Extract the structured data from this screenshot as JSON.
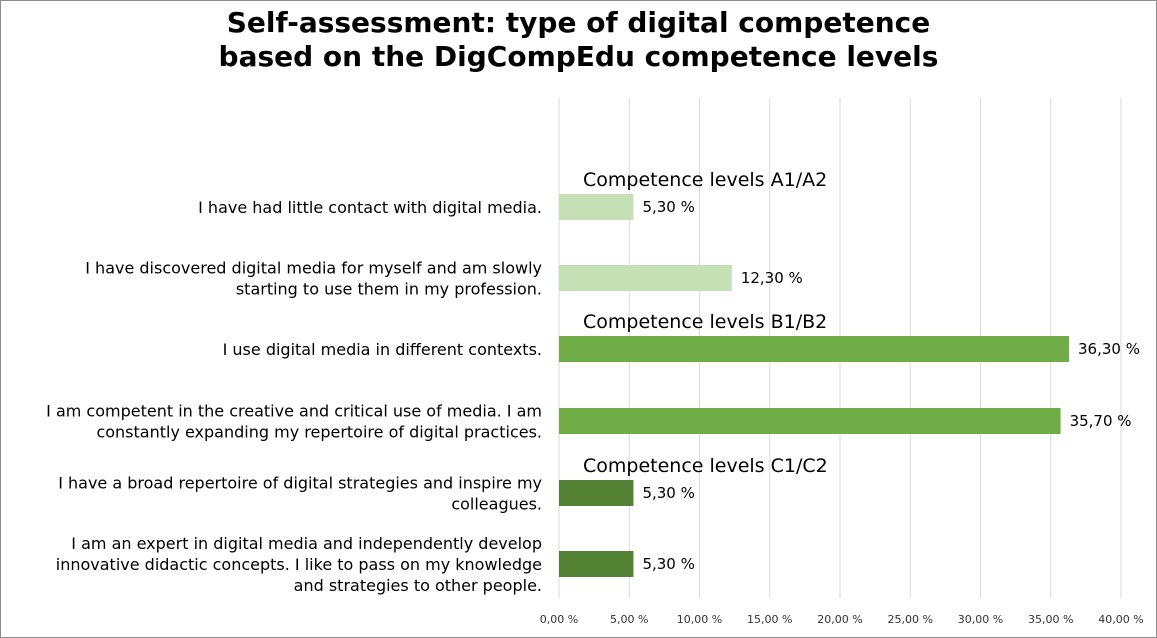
{
  "chart_data": {
    "type": "bar",
    "orientation": "horizontal",
    "title_lines": [
      "Self-assessment: type of digital competence",
      "based on the DigCompEdu competence levels"
    ],
    "categories": [
      [
        "I have had little contact with digital media."
      ],
      [
        "I have discovered digital media for myself and am slowly",
        "starting to use them in my profession."
      ],
      [
        "I use digital media in different contexts."
      ],
      [
        "I am competent in the creative and critical use of media. I am",
        "constantly expanding my repertoire of digital practices."
      ],
      [
        "I have a broad repertoire of digital strategies and inspire my",
        "colleagues."
      ],
      [
        "I am an expert in digital media and independently develop",
        "innovative didactic concepts. I like to pass on my knowledge",
        "and strategies to other people."
      ]
    ],
    "values": [
      5.3,
      12.3,
      36.3,
      35.7,
      5.3,
      5.3
    ],
    "value_labels": [
      "5,30 %",
      "12,30 %",
      "36,30 %",
      "35,70 %",
      "5,30 %",
      "5,30 %"
    ],
    "bar_colors": [
      "#c5e0b4",
      "#c5e0b4",
      "#70ad47",
      "#70ad47",
      "#548235",
      "#548235"
    ],
    "groups": [
      {
        "label": "Competence levels A1/A2",
        "first_category": 0
      },
      {
        "label": "Competence levels  B1/B2",
        "first_category": 2
      },
      {
        "label": "Competence levels  C1/C2",
        "first_category": 4
      }
    ],
    "xlim": [
      0,
      40
    ],
    "x_ticks": [
      0,
      5,
      10,
      15,
      20,
      25,
      30,
      35,
      40
    ],
    "x_tick_labels": [
      "0,00 %",
      "5,00 %",
      "10,00 %",
      "15,00 %",
      "20,00 %",
      "25,00 %",
      "30,00 %",
      "35,00 %",
      "40,00 %"
    ],
    "grid": "vertical",
    "gridline_color": "#d9d9d9",
    "legend": "none"
  }
}
